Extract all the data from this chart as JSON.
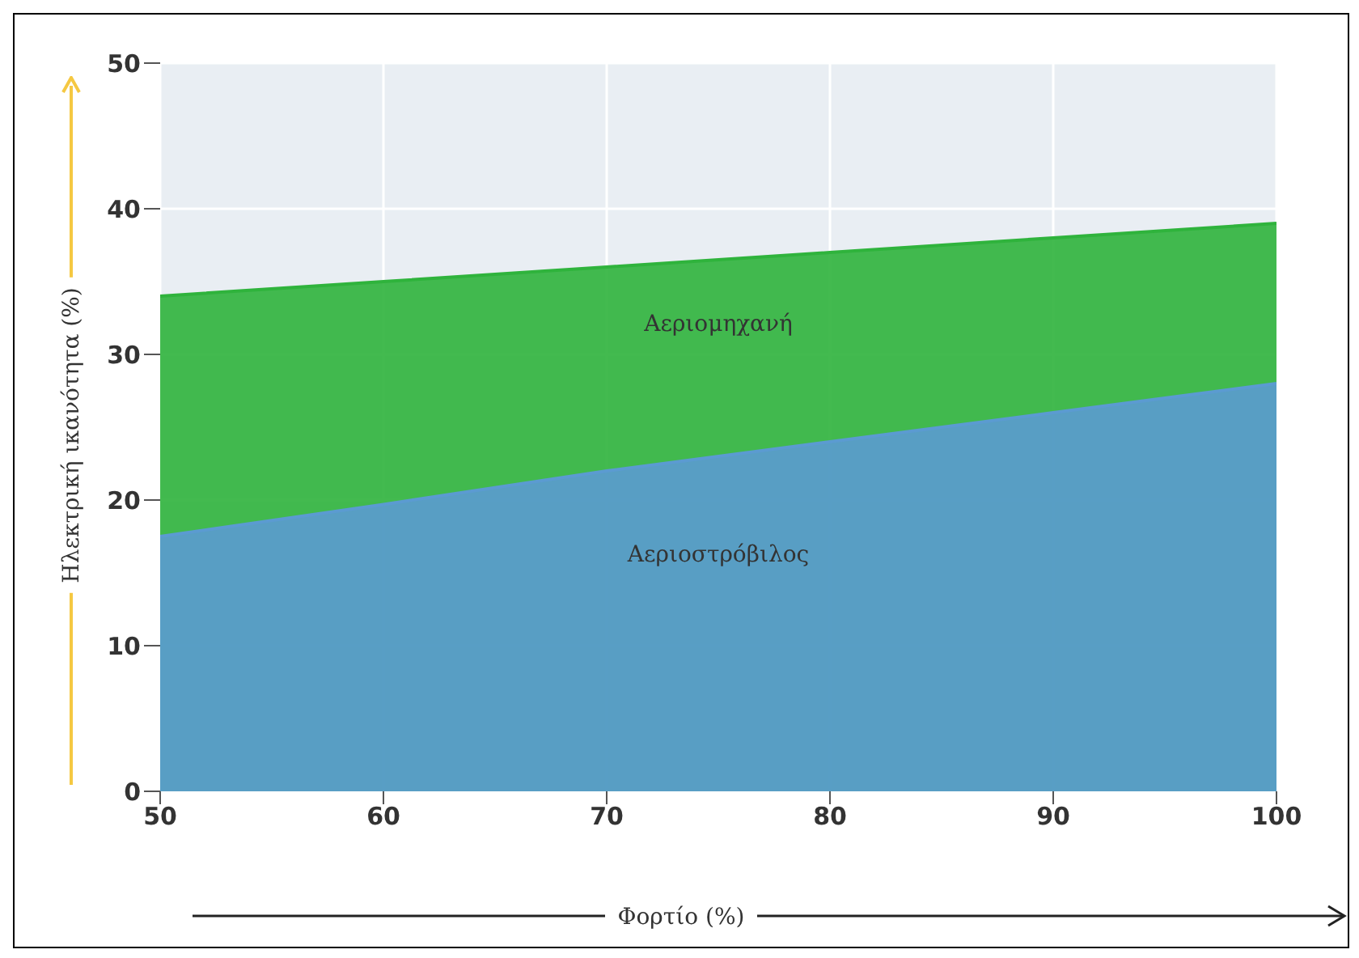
{
  "chart_data": {
    "type": "area",
    "xlabel": "Φορτίο (%)",
    "ylabel": "Ηλεκτρική ικανότητα (%)",
    "x": [
      50,
      60,
      70,
      80,
      90,
      100
    ],
    "series": [
      {
        "name": "Αεριομηχανή",
        "color": "#2fb33c",
        "values": [
          34,
          35,
          36,
          37,
          38,
          39
        ]
      },
      {
        "name": "Αεριοστρόβιλος",
        "color": "#5b9bd1",
        "values": [
          17.5,
          19.7,
          22,
          24,
          26,
          28
        ]
      }
    ],
    "xlim": [
      50,
      100
    ],
    "xticks": [
      50,
      60,
      70,
      80,
      90,
      100
    ],
    "ylim": [
      0,
      50
    ],
    "yticks": [
      0,
      10,
      20,
      30,
      40,
      50
    ],
    "grid": true,
    "legend": false
  }
}
